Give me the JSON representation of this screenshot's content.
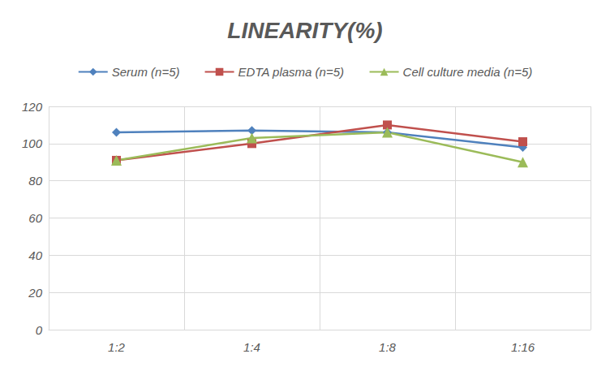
{
  "chart_data": {
    "type": "line",
    "title": "LINEARITY(%)",
    "categories": [
      "1:2",
      "1:4",
      "1:8",
      "1:16"
    ],
    "series": [
      {
        "name": "Serum (n=5)",
        "color": "#4f81bd",
        "marker": "diamond",
        "values": [
          106,
          107,
          106,
          98
        ]
      },
      {
        "name": "EDTA plasma (n=5)",
        "color": "#c0504d",
        "marker": "square",
        "values": [
          91,
          100,
          110,
          101
        ]
      },
      {
        "name": "Cell culture media (n=5)",
        "color": "#9bbb59",
        "marker": "triangle",
        "values": [
          91,
          103,
          106,
          90
        ]
      }
    ],
    "ylim": [
      0,
      120
    ],
    "yticks": [
      0,
      20,
      40,
      60,
      80,
      100,
      120
    ],
    "grid": true,
    "legend": "top"
  }
}
